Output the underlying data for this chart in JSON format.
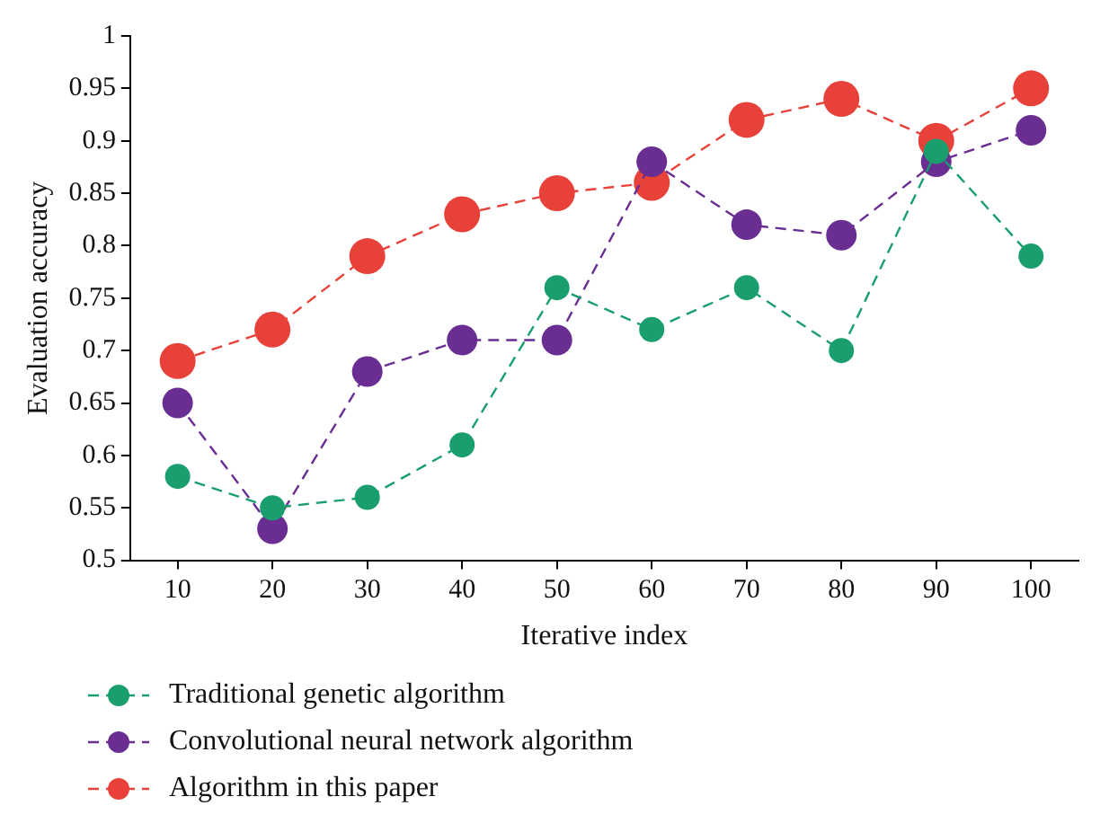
{
  "chart_data": {
    "type": "line",
    "xlabel": "Iterative index",
    "ylabel": "Evaluation accuracy",
    "categories": [
      "10",
      "20",
      "30",
      "40",
      "50",
      "60",
      "70",
      "80",
      "90",
      "100"
    ],
    "series": [
      {
        "name": "Traditional genetic algorithm",
        "color": "#1a9e6e",
        "values": [
          0.58,
          0.55,
          0.56,
          0.61,
          0.76,
          0.72,
          0.76,
          0.7,
          0.89,
          0.79
        ]
      },
      {
        "name": "Convolutional neural network algorithm",
        "color": "#6a2d91",
        "values": [
          0.65,
          0.53,
          0.68,
          0.71,
          0.71,
          0.88,
          0.82,
          0.81,
          0.88,
          0.91
        ]
      },
      {
        "name": "Algorithm in this paper",
        "color": "#e8413a",
        "values": [
          0.69,
          0.72,
          0.79,
          0.83,
          0.85,
          0.86,
          0.92,
          0.94,
          0.9,
          0.95
        ]
      }
    ],
    "ylim": [
      0.5,
      1
    ],
    "yticks": [
      0.5,
      0.55,
      0.6,
      0.65,
      0.7,
      0.75,
      0.8,
      0.85,
      0.9,
      0.95,
      1
    ],
    "grid": false,
    "legend": "bottom left",
    "marker": "circle",
    "line_style": "dashed"
  }
}
